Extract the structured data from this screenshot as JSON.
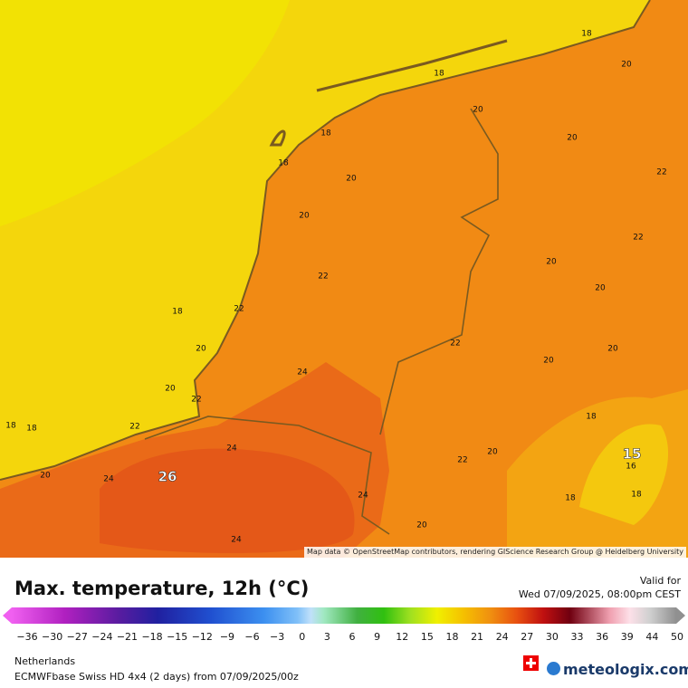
{
  "map": {
    "labels": [
      "18",
      "20",
      "18",
      "20",
      "18",
      "20",
      "18",
      "20",
      "22",
      "20",
      "22",
      "22",
      "20",
      "20",
      "22",
      "18",
      "20",
      "22",
      "20",
      "20",
      "24",
      "20",
      "22",
      "18",
      "18",
      "22",
      "18",
      "24",
      "20",
      "15",
      "16",
      "22",
      "26",
      "20",
      "24",
      "24",
      "18",
      "18",
      "20",
      "24"
    ],
    "attribution": "Map data © OpenStreetMap contributors, rendering GIScience Research Group @ Heidelberg University"
  },
  "legend": {
    "title": "Max. temperature, 12h (°C)",
    "valid_label": "Valid for",
    "valid_time": "Wed 07/09/2025, 08:00pm CEST",
    "ticks": [
      "−36",
      "−30",
      "−27",
      "−24",
      "−21",
      "−18",
      "−15",
      "−12",
      "−9",
      "−6",
      "−3",
      "0",
      "3",
      "6",
      "9",
      "12",
      "15",
      "18",
      "21",
      "24",
      "27",
      "30",
      "33",
      "36",
      "39",
      "44",
      "50"
    ]
  },
  "footer": {
    "region": "Netherlands",
    "model": "ECMWFbase Swiss HD 4x4 (2 days) from 07/09/2025/00z",
    "brand": "meteologix.com"
  }
}
